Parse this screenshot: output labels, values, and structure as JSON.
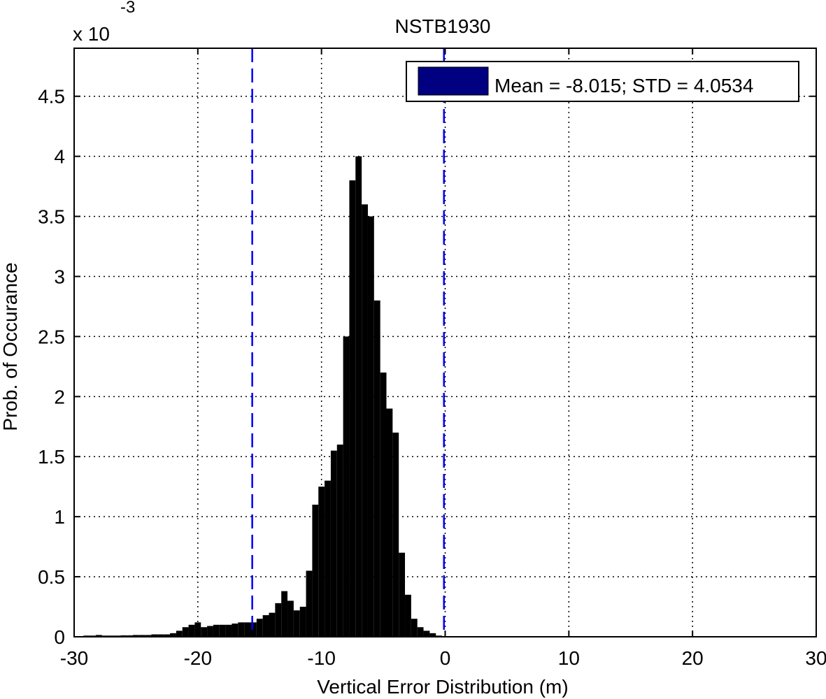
{
  "chart_data": {
    "type": "bar",
    "title": "NSTB1930",
    "xlabel": "Vertical Error Distribution (m)",
    "ylabel": "Prob. of Occurance",
    "y_exponent_base": "x 10",
    "y_exponent_power": "-3",
    "xlim": [
      -30,
      30
    ],
    "ylim": [
      0,
      4.9
    ],
    "x_ticks": [
      "-30",
      "-20",
      "-10",
      "0",
      "10",
      "20",
      "30"
    ],
    "y_ticks": [
      "0",
      "0.5",
      "1",
      "1.5",
      "2",
      "2.5",
      "3",
      "3.5",
      "4",
      "4.5"
    ],
    "grid": true,
    "legend": {
      "label": "Mean = -8.015; STD = 4.0534",
      "position": "top-right",
      "swatch_color": "#000080"
    },
    "bar_color": "#000000",
    "reference_lines": {
      "x": [
        -15.6,
        -0.1
      ],
      "style": "dashed",
      "color": "#0000ff"
    },
    "series": [
      {
        "x": [
          -29.5,
          -29,
          -28.5,
          -28,
          -27.5,
          -27,
          -26.5,
          -26,
          -25.5,
          -25,
          -24.5,
          -24,
          -23.5,
          -23,
          -22.5,
          -22,
          -21.5,
          -21,
          -20.5,
          -20,
          -19.5,
          -19,
          -18.5,
          -18,
          -17.5,
          -17,
          -16.5,
          -16,
          -15.5,
          -15,
          -14.5,
          -14,
          -13.5,
          -13,
          -12.5,
          -12,
          -11.5,
          -11,
          -10.5,
          -10,
          -9.5,
          -9,
          -8.5,
          -8,
          -7.5,
          -7,
          -6.5,
          -6,
          -5.5,
          -5,
          -4.5,
          -4,
          -3.5,
          -3,
          -2.5,
          -2,
          -1.5,
          -1,
          -0.5,
          0
        ],
        "values": [
          0.005,
          0.01,
          0.01,
          0.015,
          0.01,
          0.01,
          0.01,
          0.012,
          0.012,
          0.015,
          0.015,
          0.015,
          0.02,
          0.02,
          0.02,
          0.03,
          0.05,
          0.08,
          0.1,
          0.12,
          0.08,
          0.09,
          0.1,
          0.1,
          0.1,
          0.11,
          0.12,
          0.12,
          0.12,
          0.15,
          0.18,
          0.2,
          0.28,
          0.38,
          0.3,
          0.22,
          0.25,
          0.55,
          1.1,
          1.25,
          1.3,
          1.55,
          1.6,
          2.5,
          3.8,
          4.0,
          3.6,
          3.5,
          2.8,
          2.2,
          1.9,
          1.7,
          0.7,
          0.35,
          0.15,
          0.08,
          0.05,
          0.03,
          0.01,
          0.005
        ]
      }
    ]
  }
}
